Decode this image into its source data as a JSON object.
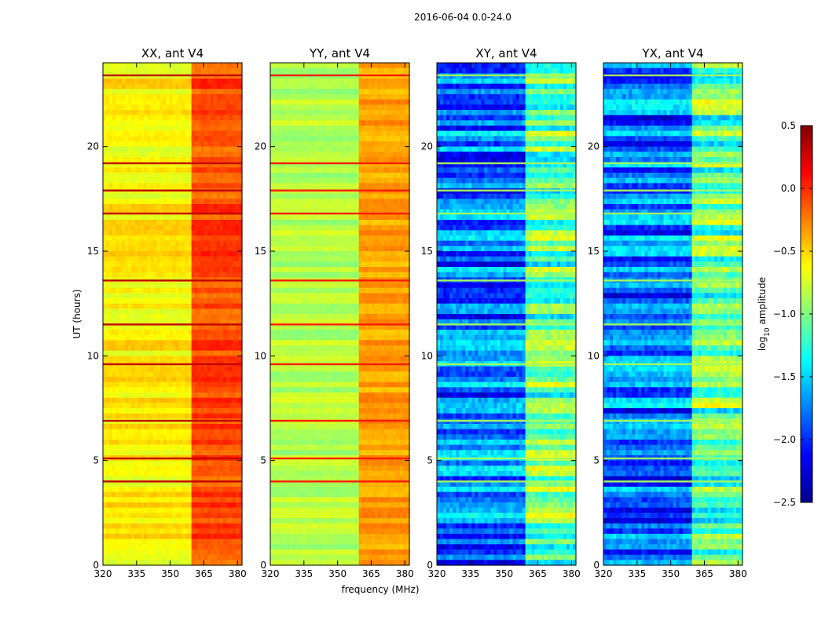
{
  "chart_data": {
    "type": "heatmap",
    "suptitle": "2016-06-04 0.0-24.0",
    "xlabel": "frequency (MHz)",
    "ylabel": "UT (hours)",
    "xlim": [
      320,
      382
    ],
    "ylim": [
      0,
      24
    ],
    "xticks": [
      320,
      335,
      350,
      365,
      380
    ],
    "yticks": [
      0,
      5,
      10,
      15,
      20
    ],
    "colorbar": {
      "label": "log10 amplitude",
      "label_base": "log",
      "label_sub": "10",
      "label_rest": " amplitude",
      "range": [
        -2.5,
        0.5
      ],
      "ticks": [
        -2.5,
        -2.0,
        -1.5,
        -1.0,
        -0.5,
        0.0,
        0.5
      ],
      "tick_labels": [
        "−2.5",
        "−2.0",
        "−1.5",
        "−1.0",
        "−0.5",
        "0.0",
        "0.5"
      ],
      "colormap": "jet"
    },
    "channel_band_mhz": [
      360,
      382
    ],
    "flagged_ut_hours": [
      4.0,
      5.1,
      6.9,
      9.6,
      11.5,
      13.6,
      16.8,
      17.9,
      19.2,
      23.4
    ],
    "panels": [
      {
        "title": "XX, ant V4",
        "base": -0.6,
        "band": -0.1,
        "variation": 0.15
      },
      {
        "title": "YY, ant V4",
        "base": -0.85,
        "band": -0.35,
        "variation": 0.12
      },
      {
        "title": "XY, ant V4",
        "base": -1.8,
        "band": -1.1,
        "variation": 0.45
      },
      {
        "title": "YX, ant V4",
        "base": -1.8,
        "band": -1.1,
        "variation": 0.45
      }
    ]
  }
}
